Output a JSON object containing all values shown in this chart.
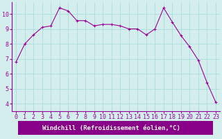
{
  "x": [
    0,
    1,
    2,
    3,
    4,
    5,
    6,
    7,
    8,
    9,
    10,
    11,
    12,
    13,
    14,
    15,
    16,
    17,
    18,
    19,
    20,
    21,
    22,
    23
  ],
  "y": [
    6.8,
    8.0,
    8.6,
    9.1,
    9.2,
    10.4,
    10.2,
    9.55,
    9.55,
    9.2,
    9.3,
    9.3,
    9.2,
    9.0,
    9.0,
    8.6,
    9.0,
    10.4,
    9.45,
    8.55,
    7.8,
    6.9,
    5.4,
    4.1
  ],
  "line_color": "#990099",
  "marker": "+",
  "marker_size": 3,
  "bg_color": "#d4eeee",
  "grid_color": "#aadddd",
  "xlabel": "Windchill (Refroidissement éolien,°C)",
  "xlabel_bg": "#880088",
  "xlabel_color": "#ffffff",
  "ylim": [
    3.5,
    10.8
  ],
  "xlim": [
    -0.5,
    23.5
  ],
  "yticks": [
    4,
    5,
    6,
    7,
    8,
    9,
    10
  ],
  "xticks": [
    0,
    1,
    2,
    3,
    4,
    5,
    6,
    7,
    8,
    9,
    10,
    11,
    12,
    13,
    14,
    15,
    16,
    17,
    18,
    19,
    20,
    21,
    22,
    23
  ],
  "tick_fontsize": 6,
  "xlabel_fontsize": 6.5
}
